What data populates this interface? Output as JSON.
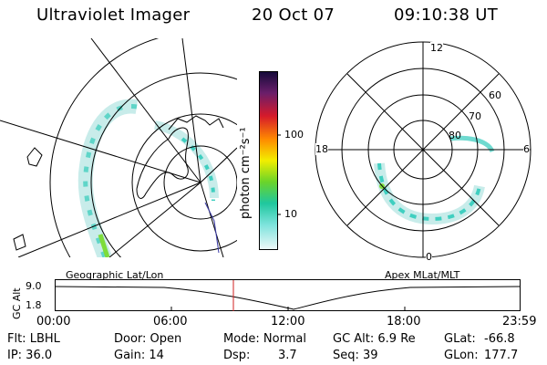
{
  "header": {
    "title": "Ultraviolet Imager",
    "date": "20 Oct 07",
    "time": "09:10:38 UT"
  },
  "colorbar": {
    "unit_label": "photon cm⁻²s⁻¹",
    "ticks": [
      "100",
      "10"
    ]
  },
  "left_map": {
    "caption": "Geographic Lat/Lon"
  },
  "polar_plot": {
    "caption": "Apex MLat/MLT",
    "mlt_labels": {
      "top": "12",
      "left": "18",
      "right": "6",
      "bottom": "0"
    },
    "lat_labels": [
      "60",
      "70",
      "80"
    ]
  },
  "altitude_plot": {
    "ylabel": "GC Alt",
    "yticks": [
      "9.0",
      "1.8"
    ],
    "xticks": [
      "00:00",
      "06:00",
      "12:00",
      "18:00",
      "23:59"
    ]
  },
  "status": {
    "flt": "Flt: LBHL",
    "ip": "IP: 36.0",
    "door": "Door: Open",
    "gain": "Gain: 14",
    "mode": "Mode: Normal",
    "dsp": "Dsp:",
    "dsp_value": "3.7",
    "gc_alt": "GC Alt: 6.9 Re",
    "seq": "Seq: 39",
    "glat_label": "GLat:",
    "glat_value": "-66.8",
    "glon_label": "GLon:",
    "glon_value": "177.7"
  }
}
